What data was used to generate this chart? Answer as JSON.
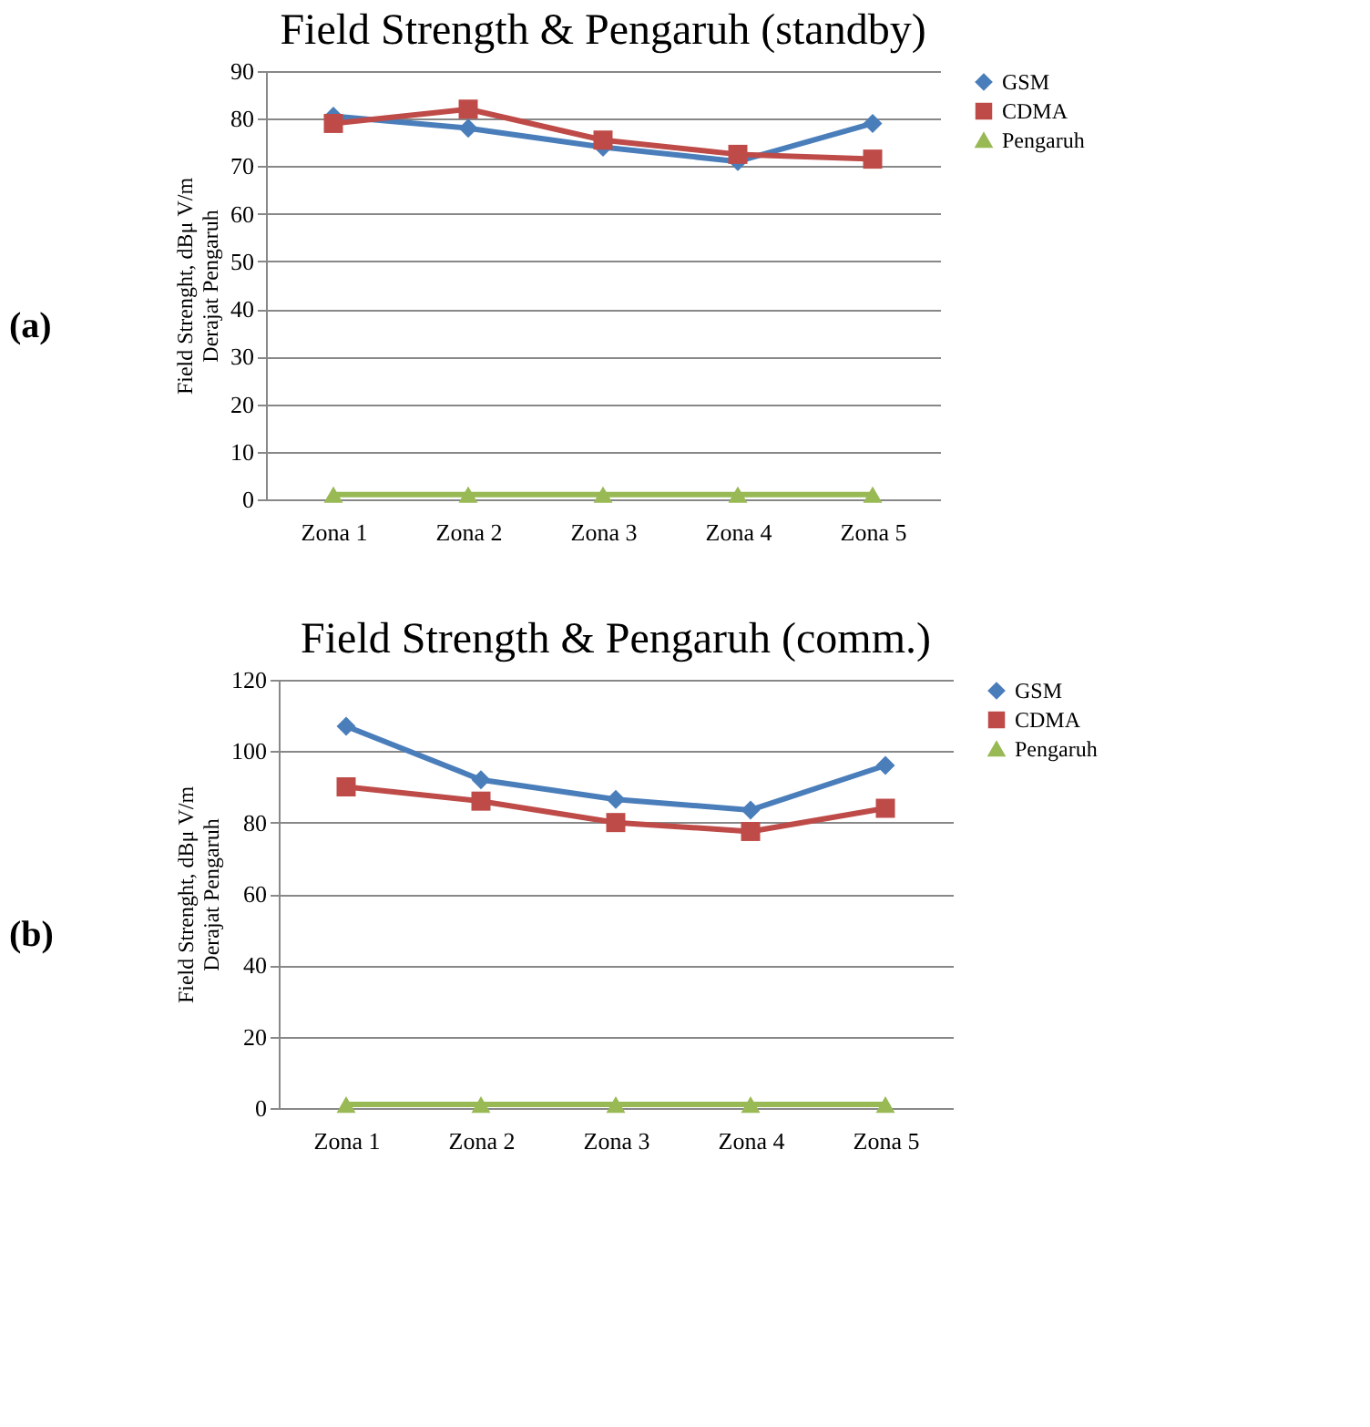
{
  "chart_data": [
    {
      "type": "line",
      "title": "Field Strength & Pengaruh (standby)",
      "ylabel": "Field Strenght, dBμ V/m\nDerajat Pengaruh",
      "annotations": [
        "(a)"
      ],
      "categories": [
        "Zona 1",
        "Zona 2",
        "Zona 3",
        "Zona 4",
        "Zona 5"
      ],
      "ylim": [
        0,
        90
      ],
      "yticks": [
        0,
        10,
        20,
        30,
        40,
        50,
        60,
        70,
        80,
        90
      ],
      "grid": "y",
      "legend": "right",
      "line_style": "solid",
      "series": [
        {
          "name": "GSM",
          "color": "#4a7ebb",
          "marker": "diamond",
          "values": [
            80.5,
            78,
            74,
            71,
            79
          ]
        },
        {
          "name": "CDMA",
          "color": "#be4b48",
          "marker": "square",
          "values": [
            79,
            82,
            75.5,
            72.5,
            71.5
          ]
        },
        {
          "name": "Pengaruh",
          "color": "#98b954",
          "marker": "triangle",
          "values": [
            1,
            1,
            1,
            1,
            1
          ]
        }
      ]
    },
    {
      "type": "line",
      "title": "Field Strength & Pengaruh (comm.)",
      "ylabel": "Field Strenght, dBμ V/m\nDerajat Pengaruh",
      "annotations": [
        "(b)"
      ],
      "categories": [
        "Zona 1",
        "Zona 2",
        "Zona 3",
        "Zona 4",
        "Zona 5"
      ],
      "ylim": [
        0,
        120
      ],
      "yticks": [
        0,
        20,
        40,
        60,
        80,
        100,
        120
      ],
      "grid": "y",
      "legend": "right",
      "line_style": "solid",
      "series": [
        {
          "name": "GSM",
          "color": "#4a7ebb",
          "marker": "diamond",
          "values": [
            107,
            92,
            86.5,
            83.5,
            96
          ]
        },
        {
          "name": "CDMA",
          "color": "#be4b48",
          "marker": "square",
          "values": [
            90,
            86,
            80,
            77.5,
            84
          ]
        },
        {
          "name": "Pengaruh",
          "color": "#98b954",
          "marker": "triangle",
          "values": [
            1,
            1,
            1,
            1,
            1
          ]
        }
      ]
    }
  ]
}
